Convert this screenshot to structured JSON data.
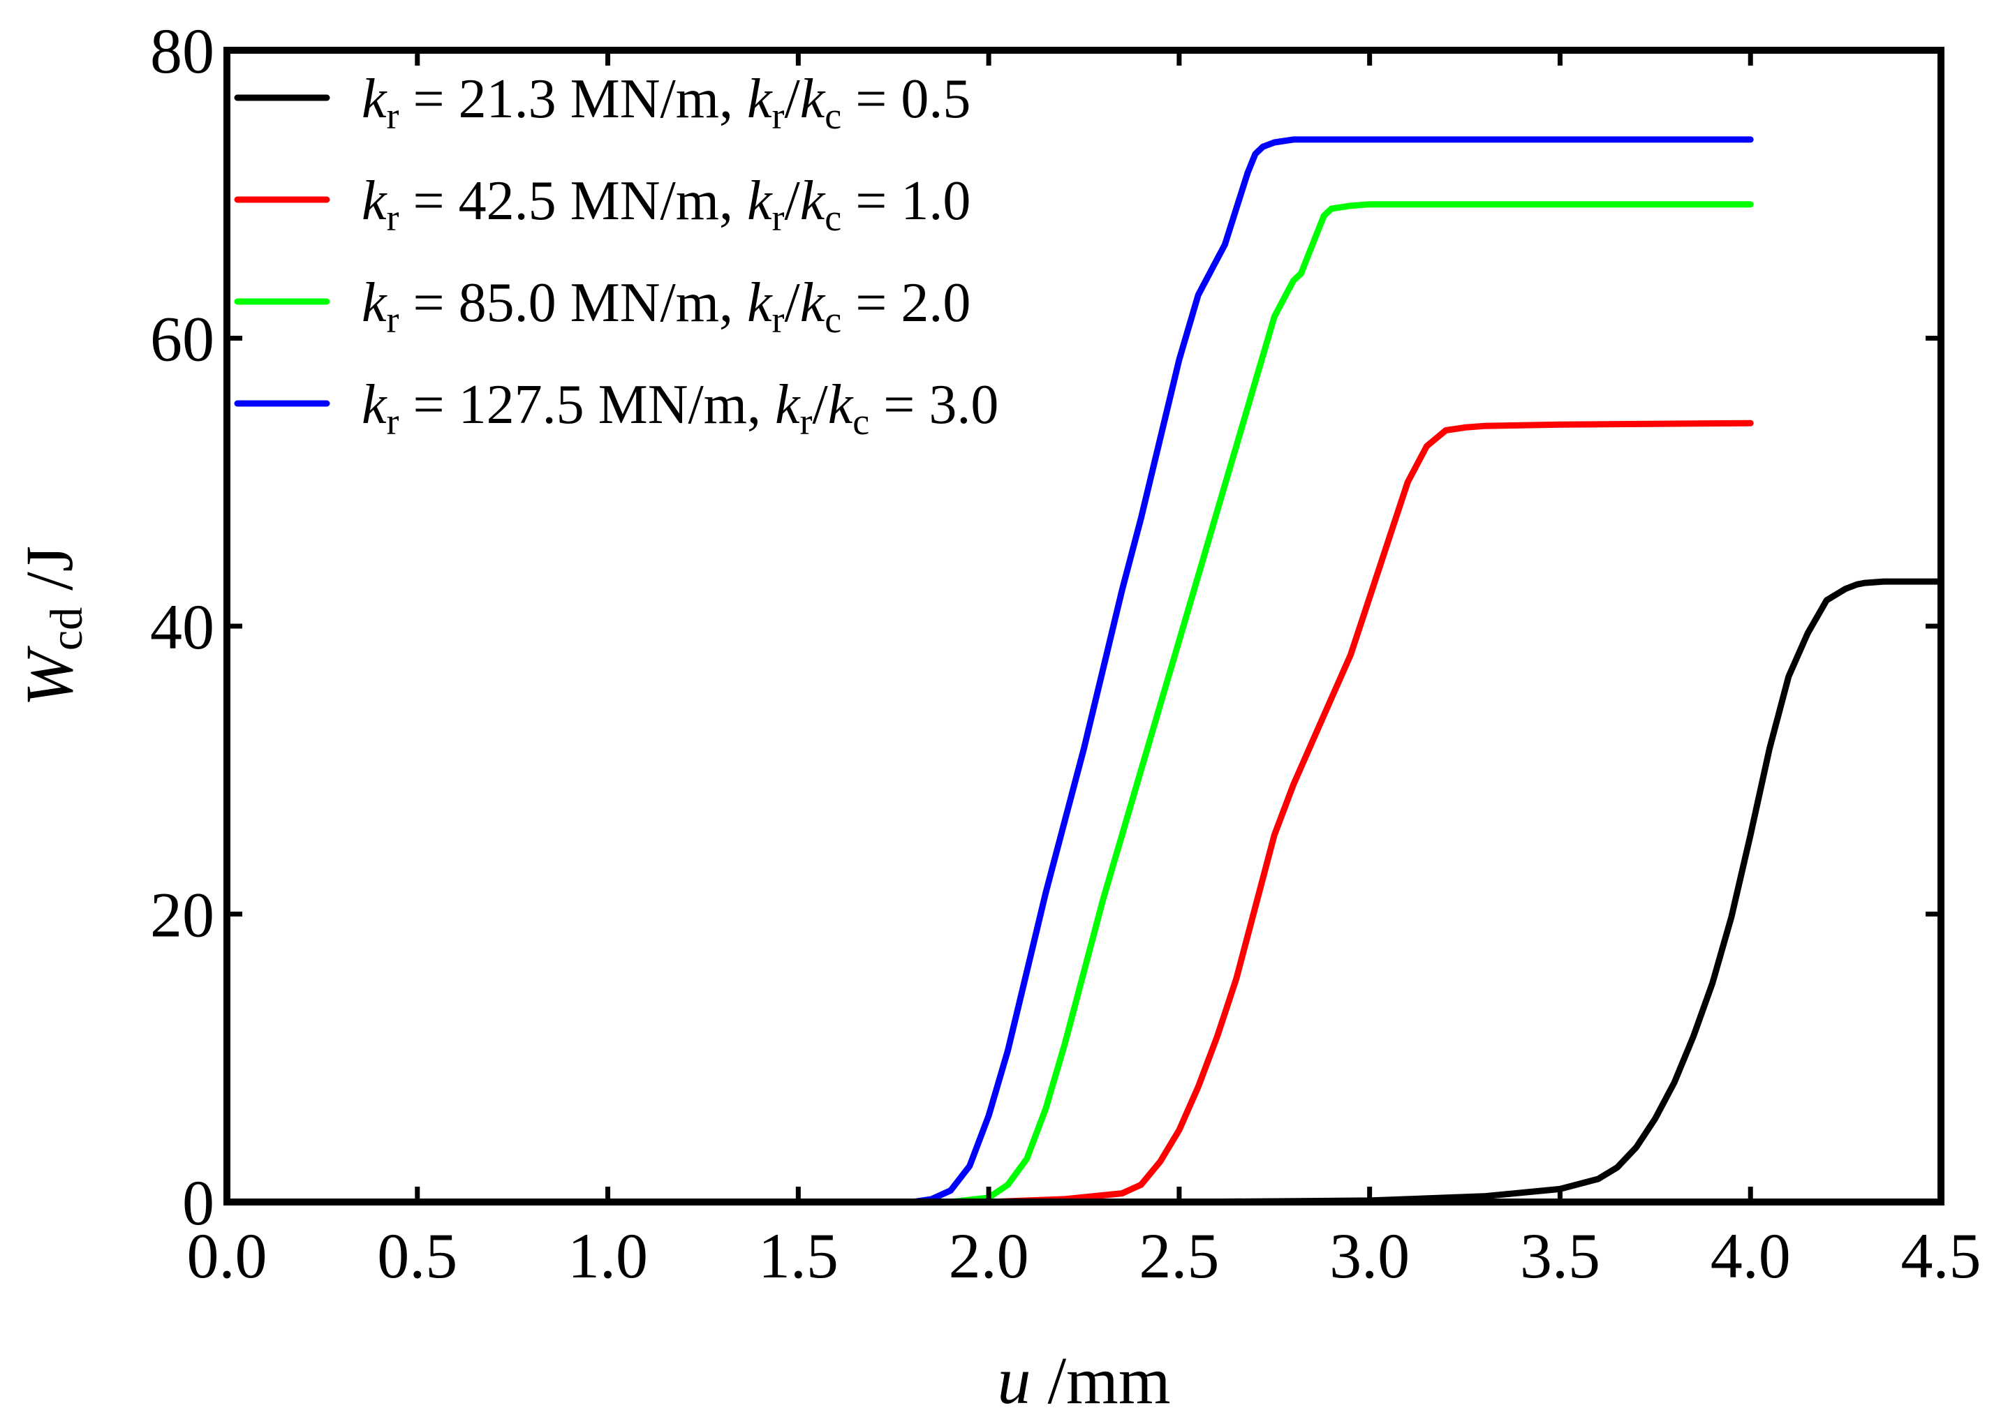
{
  "chart_data": {
    "type": "line",
    "title": "",
    "xlabel": {
      "var": "u",
      "unit": " /mm"
    },
    "ylabel": {
      "var": "W",
      "sub": "cd",
      "unit": " /J"
    },
    "xlim": [
      0.0,
      4.5
    ],
    "ylim": [
      0,
      80
    ],
    "xticks": [
      "0.0",
      "0.5",
      "1.0",
      "1.5",
      "2.0",
      "2.5",
      "3.0",
      "3.5",
      "4.0",
      "4.5"
    ],
    "yticks": [
      "0",
      "20",
      "40",
      "60",
      "80"
    ],
    "grid": false,
    "legend_position": "top-left",
    "series": [
      {
        "name": "kr = 21.3 MN/m, kr/kc = 0.5",
        "legend": {
          "kr": "21.3",
          "ratio": "0.5"
        },
        "color": "#000000",
        "x": [
          0,
          2.5,
          3.0,
          3.3,
          3.5,
          3.6,
          3.65,
          3.7,
          3.75,
          3.8,
          3.85,
          3.9,
          3.95,
          4.0,
          4.05,
          4.1,
          4.15,
          4.2,
          4.25,
          4.28,
          4.3,
          4.35,
          4.4,
          4.5
        ],
        "y": [
          0,
          0,
          0.1,
          0.4,
          0.9,
          1.6,
          2.4,
          3.8,
          5.8,
          8.3,
          11.5,
          15.2,
          19.8,
          25.5,
          31.5,
          36.5,
          39.5,
          41.8,
          42.6,
          42.9,
          43.0,
          43.1,
          43.1,
          43.1
        ]
      },
      {
        "name": "kr = 42.5 MN/m, kr/kc = 1.0",
        "legend": {
          "kr": "42.5",
          "ratio": "1.0"
        },
        "color": "#ff0000",
        "x": [
          0,
          2.0,
          2.2,
          2.35,
          2.4,
          2.45,
          2.5,
          2.55,
          2.6,
          2.65,
          2.7,
          2.75,
          2.8,
          2.85,
          2.9,
          2.95,
          3.0,
          3.05,
          3.1,
          3.15,
          3.2,
          3.25,
          3.3,
          3.5,
          4.0
        ],
        "y": [
          0,
          0,
          0.2,
          0.6,
          1.2,
          2.8,
          5.0,
          8.0,
          11.5,
          15.5,
          20.5,
          25.5,
          29.0,
          32.0,
          35.0,
          38.0,
          42.0,
          46.0,
          50.0,
          52.5,
          53.6,
          53.8,
          53.9,
          54.0,
          54.1
        ]
      },
      {
        "name": "kr = 85.0 MN/m, kr/kc = 2.0",
        "legend": {
          "kr": "85.0",
          "ratio": "2.0"
        },
        "color": "#00ff00",
        "x": [
          0,
          1.9,
          2.0,
          2.05,
          2.1,
          2.15,
          2.2,
          2.25,
          2.3,
          2.35,
          2.4,
          2.45,
          2.5,
          2.55,
          2.6,
          2.65,
          2.7,
          2.75,
          2.78,
          2.8,
          2.82,
          2.85,
          2.88,
          2.9,
          2.95,
          3.0,
          3.5,
          4.0
        ],
        "y": [
          0,
          0,
          0.3,
          1.2,
          3.0,
          6.5,
          11.0,
          16.0,
          21.0,
          25.5,
          30.0,
          34.5,
          39.0,
          43.5,
          48.0,
          52.5,
          57.0,
          61.5,
          63.0,
          64.0,
          64.5,
          66.5,
          68.5,
          69.0,
          69.2,
          69.3,
          69.3,
          69.3
        ]
      },
      {
        "name": "kr = 127.5 MN/m, kr/kc = 3.0",
        "legend": {
          "kr": "127.5",
          "ratio": "3.0"
        },
        "color": "#0000ff",
        "x": [
          0,
          1.8,
          1.85,
          1.9,
          1.95,
          2.0,
          2.05,
          2.1,
          2.15,
          2.2,
          2.25,
          2.3,
          2.35,
          2.4,
          2.45,
          2.5,
          2.55,
          2.6,
          2.62,
          2.65,
          2.68,
          2.7,
          2.72,
          2.75,
          2.8,
          2.9,
          3.0,
          3.5,
          4.0
        ],
        "y": [
          0,
          0,
          0.2,
          0.8,
          2.5,
          6.0,
          10.5,
          16.0,
          21.5,
          26.5,
          31.5,
          37.0,
          42.5,
          47.5,
          53.0,
          58.5,
          63.0,
          65.5,
          66.5,
          69.0,
          71.5,
          72.8,
          73.3,
          73.6,
          73.8,
          73.8,
          73.8,
          73.8,
          73.8
        ]
      }
    ]
  }
}
